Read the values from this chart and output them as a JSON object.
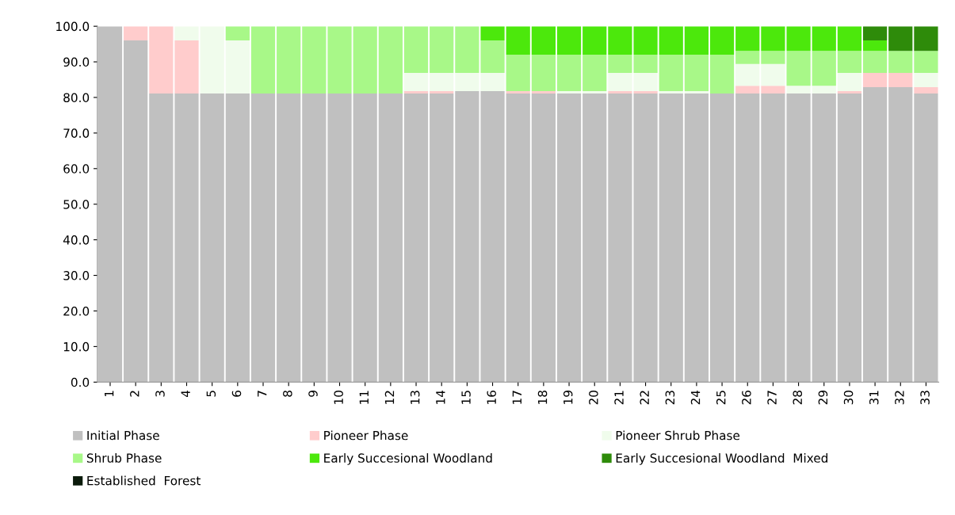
{
  "chart_data": {
    "type": "bar",
    "stacked": true,
    "categories": [
      "1",
      "2",
      "3",
      "4",
      "5",
      "6",
      "7",
      "8",
      "9",
      "10",
      "11",
      "12",
      "13",
      "14",
      "15",
      "16",
      "17",
      "18",
      "19",
      "20",
      "21",
      "22",
      "23",
      "24",
      "25",
      "26",
      "27",
      "28",
      "29",
      "30",
      "31",
      "32",
      "33"
    ],
    "series": [
      {
        "name": "Initial Phase",
        "color": "#c0c0c0",
        "values": [
          100,
          96,
          81.1,
          81.1,
          81.1,
          81.1,
          81.1,
          81.1,
          81.1,
          81.1,
          81.1,
          81.1,
          81.1,
          81.1,
          81.8,
          81.8,
          81.1,
          81.1,
          81.1,
          81.1,
          81.1,
          81.1,
          81.1,
          81.1,
          81.1,
          81.1,
          81.1,
          81.1,
          81.1,
          81.1,
          82.9,
          82.9,
          81.1
        ]
      },
      {
        "name": "Pioneer Phase",
        "color": "#ffcccc",
        "values": [
          0,
          4,
          18.9,
          14.9,
          0,
          0,
          0,
          0,
          0,
          0,
          0,
          0,
          0.7,
          0.7,
          0,
          0,
          0.7,
          0.7,
          0,
          0,
          0.7,
          0.7,
          0,
          0,
          0,
          2.2,
          2.2,
          0,
          0,
          0.7,
          4.0,
          4.0,
          1.8
        ]
      },
      {
        "name": "Pioneer Shrub Phase",
        "color": "#f0fcec",
        "values": [
          0,
          0,
          0,
          4,
          18.9,
          14.9,
          0,
          0,
          0,
          0,
          0,
          0,
          5.1,
          5.1,
          5.1,
          5.1,
          0,
          0,
          0.7,
          0.7,
          5.1,
          5.1,
          0.7,
          0.7,
          0,
          6.1,
          6.1,
          2.2,
          2.2,
          5.1,
          0,
          0,
          4.0
        ]
      },
      {
        "name": "Shrub Phase",
        "color": "#a8f888",
        "values": [
          0,
          0,
          0,
          0,
          0,
          4,
          18.9,
          18.9,
          18.9,
          18.9,
          18.9,
          18.9,
          13.1,
          13.1,
          13.1,
          9.1,
          10.2,
          10.2,
          10.2,
          10.2,
          5.1,
          5.1,
          10.2,
          10.2,
          10.9,
          3.7,
          3.7,
          9.8,
          9.8,
          6.2,
          6.2,
          6.2,
          6.2
        ]
      },
      {
        "name": "Early Succesional Woodland",
        "color": "#4ce80c",
        "values": [
          0,
          0,
          0,
          0,
          0,
          0,
          0,
          0,
          0,
          0,
          0,
          0,
          0,
          0,
          0,
          4,
          8,
          8,
          8,
          8,
          8,
          8,
          8,
          8,
          8,
          6.9,
          6.9,
          6.9,
          6.9,
          6.9,
          2.9,
          0,
          0
        ]
      },
      {
        "name": "Early Succesional Woodland  Mixed",
        "color": "#2e8b0a",
        "values": [
          0,
          0,
          0,
          0,
          0,
          0,
          0,
          0,
          0,
          0,
          0,
          0,
          0,
          0,
          0,
          0,
          0,
          0,
          0,
          0,
          0,
          0,
          0,
          0,
          0,
          0,
          0,
          0,
          0,
          0,
          4,
          6.9,
          6.9
        ]
      },
      {
        "name": "Established  Forest",
        "color": "#0a1a0a",
        "values": [
          0,
          0,
          0,
          0,
          0,
          0,
          0,
          0,
          0,
          0,
          0,
          0,
          0,
          0,
          0,
          0,
          0,
          0,
          0,
          0,
          0,
          0,
          0,
          0,
          0,
          0,
          0,
          0,
          0,
          0,
          0,
          0,
          0
        ]
      }
    ],
    "ylim": [
      0,
      100
    ],
    "yticks": [
      {
        "value": 0,
        "label": "0.0"
      },
      {
        "value": 10,
        "label": "10.0"
      },
      {
        "value": 20,
        "label": "20.0"
      },
      {
        "value": 30,
        "label": "30.0"
      },
      {
        "value": 40,
        "label": "40.0"
      },
      {
        "value": 50,
        "label": "50.0"
      },
      {
        "value": 60,
        "label": "60.0"
      },
      {
        "value": 70,
        "label": "70.0"
      },
      {
        "value": 80,
        "label": "80.0"
      },
      {
        "value": 90,
        "label": "90.0"
      },
      {
        "value": 100,
        "label": "100.0"
      }
    ],
    "grid": false,
    "legend": "bottom"
  }
}
